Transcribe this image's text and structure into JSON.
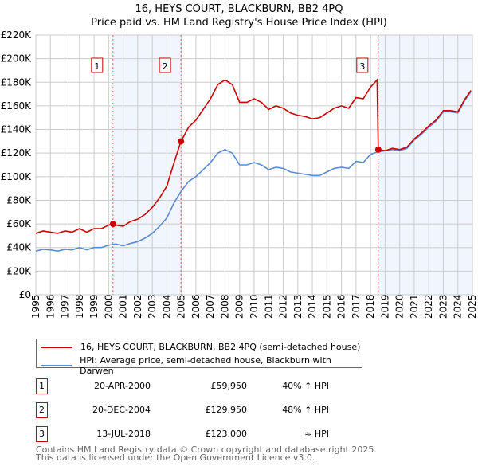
{
  "chart_data": {
    "type": "line",
    "title": "16, HEYS COURT, BLACKBURN, BB2 4PQ",
    "subtitle": "Price paid vs. HM Land Registry's House Price Index (HPI)",
    "xlim": [
      1995,
      2025
    ],
    "ylim": [
      0,
      220000
    ],
    "yticks": [
      0,
      20000,
      40000,
      60000,
      80000,
      100000,
      120000,
      140000,
      160000,
      180000,
      200000,
      220000
    ],
    "ytick_labels": [
      "£0",
      "£20K",
      "£40K",
      "£60K",
      "£80K",
      "£100K",
      "£120K",
      "£140K",
      "£160K",
      "£180K",
      "£200K",
      "£220K"
    ],
    "xticks": [
      "1995",
      "1996",
      "1997",
      "1998",
      "1999",
      "2000",
      "2001",
      "2002",
      "2003",
      "2004",
      "2005",
      "2006",
      "2007",
      "2008",
      "2009",
      "2010",
      "2011",
      "2012",
      "2013",
      "2014",
      "2015",
      "2016",
      "2017",
      "2018",
      "2019",
      "2020",
      "2021",
      "2022",
      "2023",
      "2024",
      "2025"
    ],
    "grid": true,
    "series": [
      {
        "name": "16, HEYS COURT, BLACKBURN, BB2 4PQ (semi-detached house)",
        "color": "#cc0000",
        "x": [
          1995,
          1995.5,
          1996,
          1996.5,
          1997,
          1997.5,
          1998,
          1998.5,
          1999,
          1999.5,
          2000,
          2000.3,
          2000.5,
          2001,
          2001.5,
          2002,
          2002.5,
          2003,
          2003.5,
          2004,
          2004.5,
          2004.97,
          2005.5,
          2006,
          2006.5,
          2007,
          2007.5,
          2008,
          2008.5,
          2009,
          2009.5,
          2010,
          2010.5,
          2011,
          2011.5,
          2012,
          2012.5,
          2013,
          2013.5,
          2014,
          2014.5,
          2015,
          2015.5,
          2016,
          2016.5,
          2017,
          2017.5,
          2018,
          2018.45,
          2018.53,
          2019,
          2019.5,
          2020,
          2020.5,
          2021,
          2021.5,
          2022,
          2022.5,
          2023,
          2023.5,
          2024,
          2024.5,
          2024.9
        ],
        "y": [
          52000,
          54000,
          53000,
          52000,
          54000,
          53000,
          56000,
          53000,
          56000,
          56000,
          59000,
          59950,
          59000,
          58000,
          62000,
          64000,
          68000,
          74000,
          82000,
          92000,
          112000,
          129950,
          142000,
          148000,
          157000,
          166000,
          178000,
          182000,
          178000,
          163000,
          163000,
          166000,
          163000,
          157000,
          160000,
          158000,
          154000,
          152000,
          151000,
          149000,
          150000,
          154000,
          158000,
          160000,
          158000,
          167000,
          166000,
          176000,
          182000,
          123000,
          122000,
          124000,
          123000,
          125000,
          132000,
          137000,
          143000,
          148000,
          156000,
          156000,
          155000,
          166000,
          173000
        ]
      },
      {
        "name": "HPI: Average price, semi-detached house, Blackburn with Darwen",
        "color": "#5b8bd0",
        "x": [
          1995,
          1995.5,
          1996,
          1996.5,
          1997,
          1997.5,
          1998,
          1998.5,
          1999,
          1999.5,
          2000,
          2000.5,
          2001,
          2001.5,
          2002,
          2002.5,
          2003,
          2003.5,
          2004,
          2004.5,
          2005,
          2005.5,
          2006,
          2006.5,
          2007,
          2007.5,
          2008,
          2008.5,
          2009,
          2009.5,
          2010,
          2010.5,
          2011,
          2011.5,
          2012,
          2012.5,
          2013,
          2013.5,
          2014,
          2014.5,
          2015,
          2015.5,
          2016,
          2016.5,
          2017,
          2017.5,
          2018,
          2018.5,
          2019,
          2019.5,
          2020,
          2020.5,
          2021,
          2021.5,
          2022,
          2022.5,
          2023,
          2023.5,
          2024,
          2024.5,
          2024.9
        ],
        "y": [
          37000,
          38500,
          38000,
          37000,
          38500,
          38000,
          40000,
          38000,
          40000,
          40000,
          42000,
          43000,
          41500,
          43500,
          45000,
          48000,
          52000,
          58000,
          65000,
          78000,
          88000,
          96000,
          100000,
          106000,
          112000,
          120000,
          123000,
          120000,
          110000,
          110000,
          112000,
          110000,
          106000,
          108000,
          107000,
          104000,
          103000,
          102000,
          101000,
          101000,
          104000,
          107000,
          108000,
          107000,
          113000,
          112000,
          119000,
          121000,
          122000,
          123000,
          122000,
          124000,
          131000,
          136000,
          142000,
          147000,
          155000,
          155000,
          154000,
          165000,
          172000
        ]
      }
    ],
    "sales": [
      {
        "label": "1",
        "x": 2000.3,
        "y": 59950,
        "date": "20-APR-2000",
        "price": "£59,950",
        "hpi": "40% ↑ HPI"
      },
      {
        "label": "2",
        "x": 2004.97,
        "y": 129950,
        "date": "20-DEC-2004",
        "price": "£129,950",
        "hpi": "48% ↑ HPI"
      },
      {
        "label": "3",
        "x": 2018.53,
        "y": 123000,
        "date": "13-JUL-2018",
        "price": "£123,000",
        "hpi": "≈ HPI"
      }
    ],
    "shaded_ranges": [
      [
        2000.3,
        2004.97
      ],
      [
        2018.53,
        2025
      ]
    ]
  },
  "footer": {
    "line1": "Contains HM Land Registry data © Crown copyright and database right 2025.",
    "line2": "This data is licensed under the Open Government Licence v3.0."
  }
}
